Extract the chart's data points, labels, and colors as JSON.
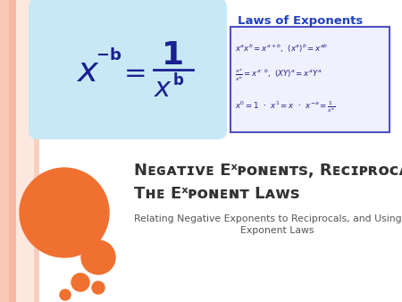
{
  "bg_color": "#ffffff",
  "stripe1_color": "#f5c8b8",
  "stripe2_color": "#f0b8a0",
  "stripe3_color": "#edd8cc",
  "circle_large_color": "#f07030",
  "circle_med_color": "#f07030",
  "circle_sm1_color": "#f07030",
  "circle_sm2_color": "#f07030",
  "circle_sm3_color": "#f07030",
  "formula_bg_color": "#c8e8f5",
  "formula_text_color": "#1a2090",
  "laws_box_border_color": "#5050c0",
  "laws_box_bg_color": "#f0f0ff",
  "laws_title_color": "#2040c0",
  "laws_text_color": "#202080",
  "title_color": "#333333",
  "subtitle_color": "#555555",
  "laws_title": "Laws of Exponents",
  "title_line1": "Negative Exponents, Reciprocals, and",
  "title_line2": "The Exponent Laws",
  "subtitle_line1": "Relating Negative Exponents to Reciprocals, and Using the",
  "subtitle_line2": "Exponent Laws"
}
